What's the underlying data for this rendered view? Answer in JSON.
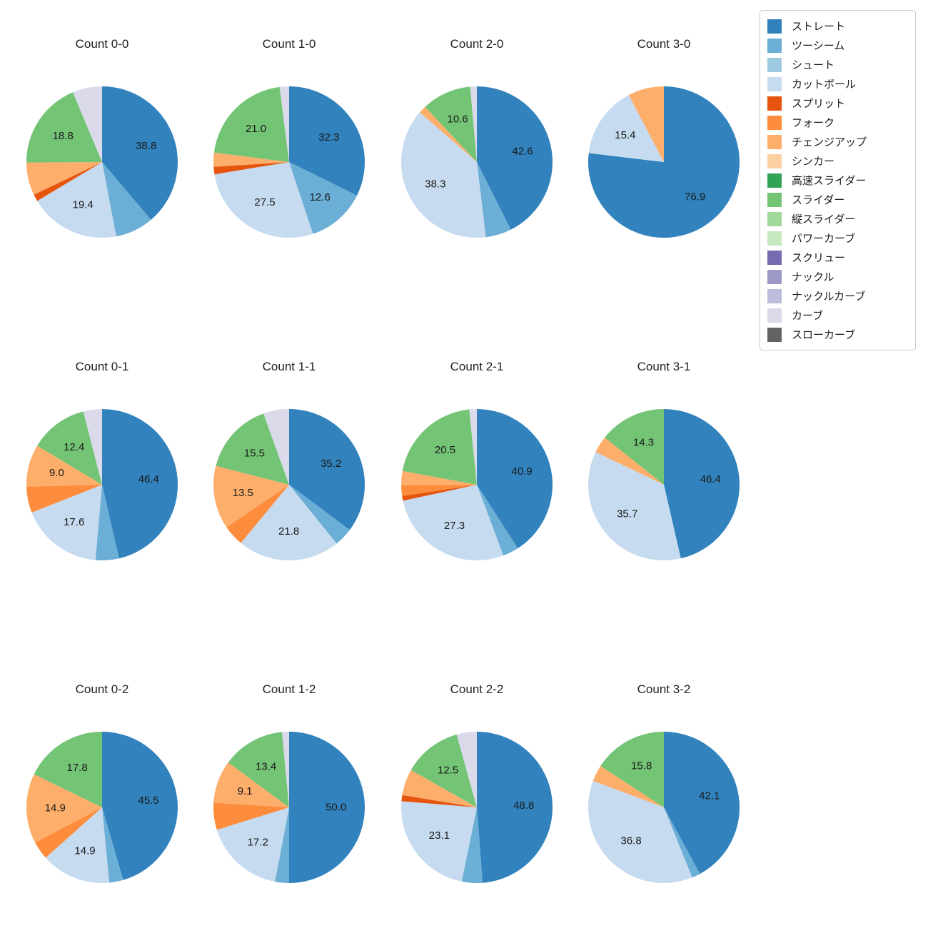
{
  "page": {
    "background": "#ffffff"
  },
  "legend": {
    "items": [
      {
        "label": "ストレート",
        "color": "#3182bd"
      },
      {
        "label": "ツーシーム",
        "color": "#6baed6"
      },
      {
        "label": "シュート",
        "color": "#9ecae1"
      },
      {
        "label": "カットボール",
        "color": "#c6dbef"
      },
      {
        "label": "スプリット",
        "color": "#e6550d"
      },
      {
        "label": "フォーク",
        "color": "#fd8d3c"
      },
      {
        "label": "チェンジアップ",
        "color": "#fdae6b"
      },
      {
        "label": "シンカー",
        "color": "#fdd0a2"
      },
      {
        "label": "高速スライダー",
        "color": "#31a354"
      },
      {
        "label": "スライダー",
        "color": "#74c476"
      },
      {
        "label": "縦スライダー",
        "color": "#a1d99b"
      },
      {
        "label": "パワーカーブ",
        "color": "#c7e9c0"
      },
      {
        "label": "スクリュー",
        "color": "#756bb1"
      },
      {
        "label": "ナックル",
        "color": "#9e9ac8"
      },
      {
        "label": "ナックルカーブ",
        "color": "#bcbddc"
      },
      {
        "label": "カーブ",
        "color": "#dadaeb"
      },
      {
        "label": "スローカーブ",
        "color": "#636363"
      }
    ]
  },
  "chart_data": [
    {
      "type": "pie",
      "title": "Count 0-0",
      "start_angle_deg": 90,
      "direction": "clockwise",
      "slices": [
        {
          "name": "ストレート",
          "value": 38.8,
          "label": "38.8"
        },
        {
          "name": "ツーシーム",
          "value": 8.2,
          "label": ""
        },
        {
          "name": "カットボール",
          "value": 19.4,
          "label": "19.4"
        },
        {
          "name": "スプリット",
          "value": 1.5,
          "label": ""
        },
        {
          "name": "チェンジアップ",
          "value": 7.0,
          "label": ""
        },
        {
          "name": "スライダー",
          "value": 18.8,
          "label": "18.8"
        },
        {
          "name": "カーブ",
          "value": 6.3,
          "label": ""
        }
      ]
    },
    {
      "type": "pie",
      "title": "Count 1-0",
      "start_angle_deg": 90,
      "direction": "clockwise",
      "slices": [
        {
          "name": "ストレート",
          "value": 32.3,
          "label": "32.3"
        },
        {
          "name": "ツーシーム",
          "value": 12.6,
          "label": "12.6"
        },
        {
          "name": "カットボール",
          "value": 27.5,
          "label": "27.5"
        },
        {
          "name": "スプリット",
          "value": 1.6,
          "label": ""
        },
        {
          "name": "チェンジアップ",
          "value": 3.0,
          "label": ""
        },
        {
          "name": "スライダー",
          "value": 21.0,
          "label": "21.0"
        },
        {
          "name": "カーブ",
          "value": 2.0,
          "label": ""
        }
      ]
    },
    {
      "type": "pie",
      "title": "Count 2-0",
      "start_angle_deg": 90,
      "direction": "clockwise",
      "slices": [
        {
          "name": "ストレート",
          "value": 42.6,
          "label": "42.6"
        },
        {
          "name": "ツーシーム",
          "value": 5.5,
          "label": ""
        },
        {
          "name": "カットボール",
          "value": 38.3,
          "label": "38.3"
        },
        {
          "name": "チェンジアップ",
          "value": 1.6,
          "label": ""
        },
        {
          "name": "スライダー",
          "value": 10.6,
          "label": "10.6"
        },
        {
          "name": "カーブ",
          "value": 1.4,
          "label": ""
        }
      ]
    },
    {
      "type": "pie",
      "title": "Count 3-0",
      "start_angle_deg": 90,
      "direction": "clockwise",
      "slices": [
        {
          "name": "ストレート",
          "value": 76.9,
          "label": "76.9"
        },
        {
          "name": "カットボール",
          "value": 15.4,
          "label": "15.4"
        },
        {
          "name": "チェンジアップ",
          "value": 7.7,
          "label": ""
        }
      ]
    },
    {
      "type": "pie",
      "title": "Count 0-1",
      "start_angle_deg": 90,
      "direction": "clockwise",
      "slices": [
        {
          "name": "ストレート",
          "value": 46.4,
          "label": "46.4"
        },
        {
          "name": "ツーシーム",
          "value": 5.0,
          "label": ""
        },
        {
          "name": "カットボール",
          "value": 17.6,
          "label": "17.6"
        },
        {
          "name": "フォーク",
          "value": 5.6,
          "label": ""
        },
        {
          "name": "チェンジアップ",
          "value": 9.0,
          "label": "9.0"
        },
        {
          "name": "スライダー",
          "value": 12.4,
          "label": "12.4"
        },
        {
          "name": "カーブ",
          "value": 4.0,
          "label": ""
        }
      ]
    },
    {
      "type": "pie",
      "title": "Count 1-1",
      "start_angle_deg": 90,
      "direction": "clockwise",
      "slices": [
        {
          "name": "ストレート",
          "value": 35.2,
          "label": "35.2"
        },
        {
          "name": "ツーシーム",
          "value": 4.0,
          "label": ""
        },
        {
          "name": "カットボール",
          "value": 21.8,
          "label": "21.8"
        },
        {
          "name": "フォーク",
          "value": 4.5,
          "label": ""
        },
        {
          "name": "チェンジアップ",
          "value": 13.5,
          "label": "13.5"
        },
        {
          "name": "スライダー",
          "value": 15.5,
          "label": "15.5"
        },
        {
          "name": "カーブ",
          "value": 5.5,
          "label": ""
        }
      ]
    },
    {
      "type": "pie",
      "title": "Count 2-1",
      "start_angle_deg": 90,
      "direction": "clockwise",
      "slices": [
        {
          "name": "ストレート",
          "value": 40.9,
          "label": "40.9"
        },
        {
          "name": "ツーシーム",
          "value": 3.4,
          "label": ""
        },
        {
          "name": "カットボール",
          "value": 27.3,
          "label": "27.3"
        },
        {
          "name": "スプリット",
          "value": 1.0,
          "label": ""
        },
        {
          "name": "フォーク",
          "value": 2.3,
          "label": ""
        },
        {
          "name": "チェンジアップ",
          "value": 3.0,
          "label": ""
        },
        {
          "name": "スライダー",
          "value": 20.5,
          "label": "20.5"
        },
        {
          "name": "カーブ",
          "value": 1.6,
          "label": ""
        }
      ]
    },
    {
      "type": "pie",
      "title": "Count 3-1",
      "start_angle_deg": 90,
      "direction": "clockwise",
      "slices": [
        {
          "name": "ストレート",
          "value": 46.4,
          "label": "46.4"
        },
        {
          "name": "カットボール",
          "value": 35.7,
          "label": "35.7"
        },
        {
          "name": "チェンジアップ",
          "value": 3.6,
          "label": ""
        },
        {
          "name": "スライダー",
          "value": 14.3,
          "label": "14.3"
        }
      ]
    },
    {
      "type": "pie",
      "title": "Count 0-2",
      "start_angle_deg": 90,
      "direction": "clockwise",
      "slices": [
        {
          "name": "ストレート",
          "value": 45.5,
          "label": "45.5"
        },
        {
          "name": "ツーシーム",
          "value": 3.0,
          "label": ""
        },
        {
          "name": "カットボール",
          "value": 14.9,
          "label": "14.9"
        },
        {
          "name": "フォーク",
          "value": 3.9,
          "label": ""
        },
        {
          "name": "チェンジアップ",
          "value": 14.9,
          "label": "14.9"
        },
        {
          "name": "スライダー",
          "value": 17.8,
          "label": "17.8"
        }
      ]
    },
    {
      "type": "pie",
      "title": "Count 1-2",
      "start_angle_deg": 90,
      "direction": "clockwise",
      "slices": [
        {
          "name": "ストレート",
          "value": 50.0,
          "label": "50.0"
        },
        {
          "name": "ツーシーム",
          "value": 3.0,
          "label": ""
        },
        {
          "name": "カットボール",
          "value": 17.2,
          "label": "17.2"
        },
        {
          "name": "フォーク",
          "value": 5.8,
          "label": ""
        },
        {
          "name": "チェンジアップ",
          "value": 9.1,
          "label": "9.1"
        },
        {
          "name": "スライダー",
          "value": 13.4,
          "label": "13.4"
        },
        {
          "name": "カーブ",
          "value": 1.5,
          "label": ""
        }
      ]
    },
    {
      "type": "pie",
      "title": "Count 2-2",
      "start_angle_deg": 90,
      "direction": "clockwise",
      "slices": [
        {
          "name": "ストレート",
          "value": 48.8,
          "label": "48.8"
        },
        {
          "name": "ツーシーム",
          "value": 4.4,
          "label": ""
        },
        {
          "name": "カットボール",
          "value": 23.1,
          "label": "23.1"
        },
        {
          "name": "スプリット",
          "value": 1.3,
          "label": ""
        },
        {
          "name": "チェンジアップ",
          "value": 5.6,
          "label": ""
        },
        {
          "name": "スライダー",
          "value": 12.5,
          "label": "12.5"
        },
        {
          "name": "カーブ",
          "value": 4.3,
          "label": ""
        }
      ]
    },
    {
      "type": "pie",
      "title": "Count 3-2",
      "start_angle_deg": 90,
      "direction": "clockwise",
      "slices": [
        {
          "name": "ストレート",
          "value": 42.1,
          "label": "42.1"
        },
        {
          "name": "ツーシーム",
          "value": 1.8,
          "label": ""
        },
        {
          "name": "カットボール",
          "value": 36.8,
          "label": "36.8"
        },
        {
          "name": "チェンジアップ",
          "value": 3.5,
          "label": ""
        },
        {
          "name": "スライダー",
          "value": 15.8,
          "label": "15.8"
        }
      ]
    }
  ]
}
